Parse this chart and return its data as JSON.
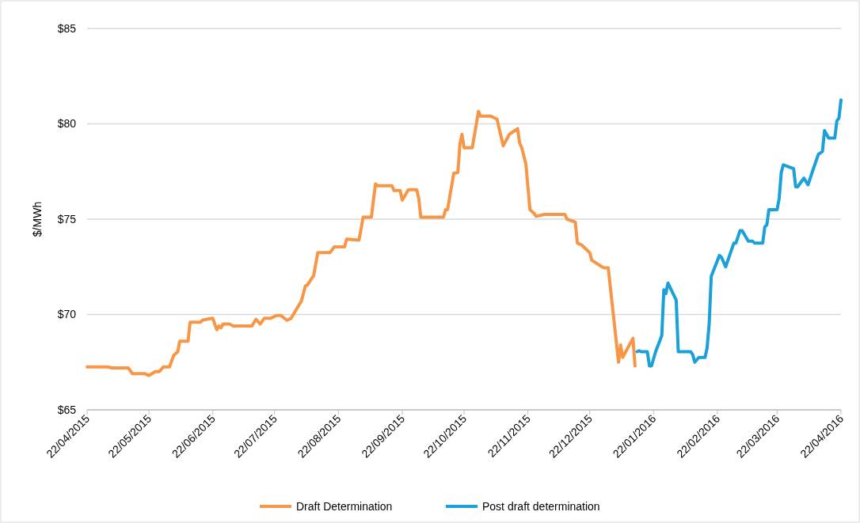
{
  "chart_data": {
    "type": "line",
    "ylabel": "$/MWh",
    "ylim": [
      65,
      85
    ],
    "yticks": [
      {
        "value": 65,
        "label": "$65"
      },
      {
        "value": 70,
        "label": "$70"
      },
      {
        "value": 75,
        "label": "$75"
      },
      {
        "value": 80,
        "label": "$80"
      },
      {
        "value": 85,
        "label": "$85"
      }
    ],
    "xlim": [
      "2015-04-22",
      "2016-04-22"
    ],
    "xticks": [
      {
        "value": "2015-04-22",
        "label": "22/04/2015"
      },
      {
        "value": "2015-05-22",
        "label": "22/05/2015"
      },
      {
        "value": "2015-06-22",
        "label": "22/06/2015"
      },
      {
        "value": "2015-07-22",
        "label": "22/07/2015"
      },
      {
        "value": "2015-08-22",
        "label": "22/08/2015"
      },
      {
        "value": "2015-09-22",
        "label": "22/09/2015"
      },
      {
        "value": "2015-10-22",
        "label": "22/10/2015"
      },
      {
        "value": "2015-11-22",
        "label": "22/11/2015"
      },
      {
        "value": "2015-12-22",
        "label": "22/12/2015"
      },
      {
        "value": "2016-01-22",
        "label": "22/01/2016"
      },
      {
        "value": "2016-02-22",
        "label": "22/02/2016"
      },
      {
        "value": "2016-03-22",
        "label": "22/03/2016"
      },
      {
        "value": "2016-04-22",
        "label": "22/04/2016"
      }
    ],
    "grid": "y",
    "legend": "bottom",
    "marker": "none",
    "line_style": "solid",
    "series": [
      {
        "name": "Draft Determination",
        "color": "#f79646",
        "x": [
          "2015-04-22",
          "2015-05-02",
          "2015-05-04",
          "2015-05-12",
          "2015-05-14",
          "2015-05-20",
          "2015-05-22",
          "2015-05-25",
          "2015-05-27",
          "2015-05-29",
          "2015-06-01",
          "2015-06-03",
          "2015-06-05",
          "2015-06-06",
          "2015-06-10",
          "2015-06-11",
          "2015-06-16",
          "2015-06-17",
          "2015-06-19",
          "2015-06-22",
          "2015-06-24",
          "2015-06-25",
          "2015-06-26",
          "2015-06-27",
          "2015-06-30",
          "2015-07-02",
          "2015-07-11",
          "2015-07-13",
          "2015-07-15",
          "2015-07-17",
          "2015-07-20",
          "2015-07-23",
          "2015-07-25",
          "2015-07-28",
          "2015-07-30",
          "2015-08-04",
          "2015-08-06",
          "2015-08-07",
          "2015-08-10",
          "2015-08-12",
          "2015-08-18",
          "2015-08-20",
          "2015-08-25",
          "2015-08-26",
          "2015-09-01",
          "2015-09-03",
          "2015-09-07",
          "2015-09-09",
          "2015-09-10",
          "2015-09-17",
          "2015-09-18",
          "2015-09-21",
          "2015-09-22",
          "2015-09-25",
          "2015-09-29",
          "2015-09-30",
          "2015-10-01",
          "2015-10-12",
          "2015-10-13",
          "2015-10-14",
          "2015-10-17",
          "2015-10-19",
          "2015-10-20",
          "2015-10-21",
          "2015-10-22",
          "2015-10-26",
          "2015-10-29",
          "2015-10-30",
          "2015-11-04",
          "2015-11-07",
          "2015-11-10",
          "2015-11-13",
          "2015-11-17",
          "2015-11-18",
          "2015-11-19",
          "2015-11-21",
          "2015-11-23",
          "2015-11-25",
          "2015-11-26",
          "2015-11-30",
          "2015-12-10",
          "2015-12-11",
          "2015-12-15",
          "2015-12-16",
          "2015-12-18",
          "2015-12-22",
          "2015-12-23",
          "2015-12-28",
          "2015-12-29",
          "2015-12-31",
          "2016-01-05",
          "2016-01-06",
          "2016-01-07",
          "2016-01-12",
          "2016-01-13"
        ],
        "values": [
          67.25,
          67.25,
          67.2,
          67.2,
          66.9,
          66.9,
          66.8,
          67.0,
          67.0,
          67.25,
          67.25,
          67.85,
          68.05,
          68.6,
          68.6,
          69.6,
          69.6,
          69.7,
          69.75,
          69.8,
          69.2,
          69.4,
          69.3,
          69.5,
          69.5,
          69.4,
          69.4,
          69.75,
          69.5,
          69.8,
          69.8,
          69.95,
          69.95,
          69.7,
          69.8,
          70.7,
          71.5,
          71.55,
          72.05,
          73.25,
          73.25,
          73.55,
          73.55,
          73.95,
          73.9,
          75.1,
          75.1,
          76.85,
          76.75,
          76.75,
          76.5,
          76.5,
          76.0,
          76.55,
          76.55,
          76.1,
          75.1,
          75.1,
          75.5,
          75.5,
          77.4,
          77.45,
          78.95,
          79.45,
          78.75,
          78.75,
          80.65,
          80.4,
          80.4,
          80.25,
          78.85,
          79.45,
          79.75,
          79.0,
          78.75,
          77.9,
          75.5,
          75.3,
          75.15,
          75.25,
          75.25,
          75.0,
          74.85,
          73.75,
          73.65,
          73.25,
          72.85,
          72.5,
          72.45,
          72.45,
          67.5,
          68.4,
          67.75,
          68.75,
          67.3
        ]
      },
      {
        "name": "Post draft determination",
        "color": "#1ba1d7",
        "x": [
          "2016-01-14",
          "2016-01-15",
          "2016-01-16",
          "2016-01-19",
          "2016-01-20",
          "2016-01-21",
          "2016-01-23",
          "2016-01-26",
          "2016-01-27",
          "2016-01-28",
          "2016-01-29",
          "2016-02-02",
          "2016-02-03",
          "2016-02-09",
          "2016-02-10",
          "2016-02-11",
          "2016-02-13",
          "2016-02-16",
          "2016-02-17",
          "2016-02-18",
          "2016-02-19",
          "2016-02-23",
          "2016-02-24",
          "2016-02-26",
          "2016-03-01",
          "2016-03-02",
          "2016-03-04",
          "2016-03-05",
          "2016-03-08",
          "2016-03-10",
          "2016-03-11",
          "2016-03-15",
          "2016-03-16",
          "2016-03-17",
          "2016-03-18",
          "2016-03-22",
          "2016-03-23",
          "2016-03-24",
          "2016-03-25",
          "2016-03-30",
          "2016-03-31",
          "2016-04-01",
          "2016-04-04",
          "2016-04-06",
          "2016-04-08",
          "2016-04-11",
          "2016-04-13",
          "2016-04-14",
          "2016-04-16",
          "2016-04-19",
          "2016-04-20",
          "2016-04-21",
          "2016-04-22"
        ],
        "values": [
          68.05,
          68.1,
          68.05,
          68.05,
          67.3,
          67.3,
          68.05,
          68.9,
          71.3,
          71.1,
          71.65,
          70.75,
          68.05,
          68.05,
          67.9,
          67.5,
          67.75,
          67.75,
          68.25,
          69.5,
          72.0,
          73.1,
          73.0,
          72.5,
          73.75,
          73.75,
          74.4,
          74.4,
          73.85,
          73.85,
          73.75,
          73.75,
          74.6,
          74.7,
          75.5,
          75.5,
          76.1,
          77.45,
          77.85,
          77.65,
          76.7,
          76.7,
          77.15,
          76.8,
          77.45,
          78.4,
          78.55,
          79.65,
          79.25,
          79.25,
          80.15,
          80.3,
          81.25
        ]
      }
    ]
  }
}
